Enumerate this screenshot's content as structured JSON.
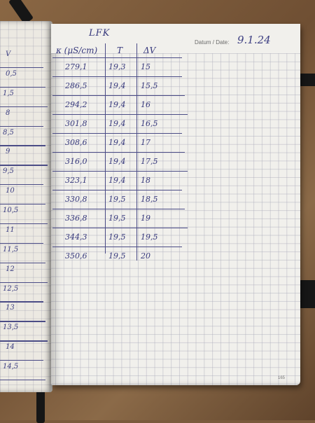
{
  "notebook": {
    "header": {
      "datum_label": "Datum / Date:",
      "datum_value": "9.1.24"
    },
    "sheet_title": "LFK",
    "table": {
      "columns": [
        "κ (μS/cm)",
        "T",
        "ΔV"
      ],
      "rows": [
        {
          "kappa": "279,1",
          "t": "19,3",
          "dv": "15"
        },
        {
          "kappa": "286,5",
          "t": "19,4",
          "dv": "15,5"
        },
        {
          "kappa": "294,2",
          "t": "19,4",
          "dv": "16"
        },
        {
          "kappa": "301,8",
          "t": "19,4",
          "dv": "16,5"
        },
        {
          "kappa": "308,6",
          "t": "19,4",
          "dv": "17"
        },
        {
          "kappa": "316,0",
          "t": "19,4",
          "dv": "17,5"
        },
        {
          "kappa": "323,1",
          "t": "19,4",
          "dv": "18"
        },
        {
          "kappa": "330,8",
          "t": "19,5",
          "dv": "18,5"
        },
        {
          "kappa": "336,8",
          "t": "19,5",
          "dv": "19"
        },
        {
          "kappa": "344,3",
          "t": "19,5",
          "dv": "19,5"
        },
        {
          "kappa": "350,6",
          "t": "19,5",
          "dv": "20"
        }
      ]
    },
    "left_page_values": [
      "V",
      "0,5",
      "1,5",
      "8",
      "8,5",
      "9",
      "9,5",
      "10",
      "10,5",
      "11",
      "11,5",
      "12",
      "12,5",
      "13",
      "13,5",
      "14",
      "14,5"
    ],
    "page_number": "165"
  },
  "colors": {
    "ink": "#36387c",
    "paper": "#f1f0ec",
    "grid": "#aaaab9",
    "table_surface": "#7a5a3c"
  }
}
